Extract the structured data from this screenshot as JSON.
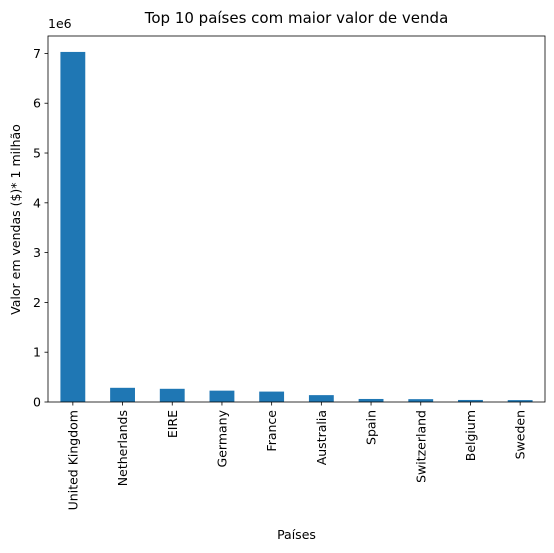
{
  "chart_data": {
    "type": "bar",
    "title": "Top 10 países com maior valor de venda",
    "xlabel": "Países",
    "ylabel": "Valor em vendas ($)* 1 milhão",
    "y_offset_label": "1e6",
    "y_scale": 1000000,
    "categories": [
      "United Kingdom",
      "Netherlands",
      "EIRE",
      "Germany",
      "France",
      "Australia",
      "Spain",
      "Switzerland",
      "Belgium",
      "Sweden"
    ],
    "values": [
      7030000,
      285000,
      265000,
      228000,
      209000,
      138000,
      61000,
      57000,
      41000,
      38000
    ],
    "ylim": [
      0,
      7350000
    ],
    "yticks": [
      0,
      1000000,
      2000000,
      3000000,
      4000000,
      5000000,
      6000000,
      7000000
    ],
    "ytick_labels": [
      "0",
      "1",
      "2",
      "3",
      "4",
      "5",
      "6",
      "7"
    ],
    "bar_color": "#1f77b4",
    "grid": false,
    "legend": "none"
  }
}
